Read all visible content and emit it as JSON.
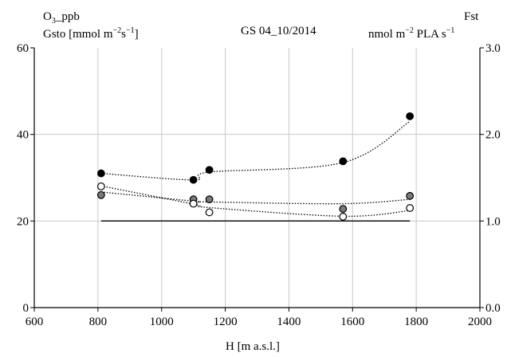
{
  "chart_data": {
    "type": "scatter",
    "title": "GS 04_10/2014",
    "left_label_line1": "ppb",
    "left_label_line2": "Gsto [mmol m",
    "right_label_line1": "Fst",
    "right_label_line2": "nmol m",
    "xlabel": "H [m a.s.l.]",
    "xlim": [
      600,
      2000
    ],
    "ylim": [
      0,
      60
    ],
    "y2lim": [
      0.0,
      3.0
    ],
    "x_ticks": [
      "600",
      "800",
      "1000",
      "1200",
      "1400",
      "1600",
      "1800",
      "2000"
    ],
    "y_ticks": [
      "0",
      "20",
      "40",
      "60"
    ],
    "y2_ticks": [
      "0.0",
      "1.0",
      "2.0",
      "3.0"
    ],
    "grid": true,
    "reference_line": {
      "x": [
        810,
        1780
      ],
      "y": 20
    },
    "series": [
      {
        "marker": "filled-black",
        "x": [
          810,
          1100,
          1150,
          1570,
          1780
        ],
        "y": [
          31,
          29.5,
          31.8,
          33.8,
          44.2
        ],
        "trend": [
          31,
          29.5,
          31.3,
          33.5,
          43
        ]
      },
      {
        "marker": "filled-gray",
        "x": [
          810,
          1100,
          1150,
          1570,
          1780
        ],
        "y": [
          26,
          25,
          25,
          22.8,
          25.8
        ],
        "trend": [
          26.7,
          24.6,
          24.4,
          24,
          25
        ]
      },
      {
        "marker": "open-white",
        "x": [
          810,
          1100,
          1150,
          1570,
          1780
        ],
        "y": [
          28,
          24,
          22,
          21,
          23
        ],
        "trend": [
          28.1,
          23.9,
          23.1,
          21.1,
          22.4
        ]
      }
    ]
  },
  "colors": {
    "filled_black": "#000000",
    "filled_gray": "#7a7a7a",
    "open_white": "#ffffff",
    "grid": "#c8c8c8"
  }
}
